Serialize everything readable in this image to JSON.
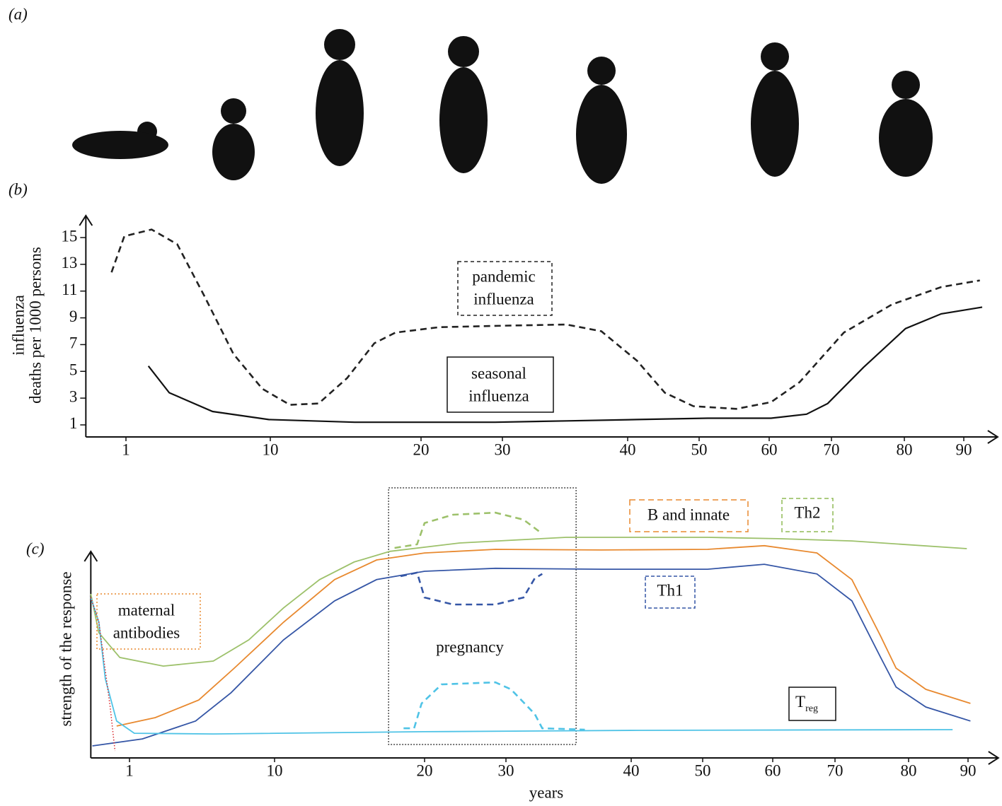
{
  "panel_labels": [
    "(a)",
    "(b)",
    "(c)"
  ],
  "chart_data": [
    {
      "type": "line",
      "ylabel": [
        "influenza",
        "deaths per 1000 persons"
      ],
      "xlim": [
        -1.5,
        95.7
      ],
      "xticks": [
        1,
        10,
        20,
        30,
        40,
        50,
        60,
        70,
        80,
        90
      ],
      "ylim": [
        0.1,
        16.4
      ],
      "yticks": [
        1,
        3,
        5,
        7,
        9,
        11,
        13,
        15
      ],
      "series": [
        {
          "name": [
            "pandemic",
            "influenza"
          ],
          "color": "#222222",
          "dash": true,
          "x": [
            0.1,
            0.9,
            2.6,
            4.2,
            5.9,
            7.7,
            9.5,
            11.3,
            13.2,
            15.1,
            16.9,
            18.3,
            22.2,
            29.1,
            35.1,
            37.9,
            41.3,
            45.2,
            49.2,
            55.3,
            60.3,
            64.9,
            71.7,
            78.3,
            86.2,
            92.7
          ],
          "values": [
            12.4,
            15.1,
            15.6,
            14.5,
            10.6,
            6.3,
            3.7,
            2.5,
            2.6,
            4.5,
            7.1,
            7.9,
            8.3,
            8.4,
            8.5,
            8.0,
            5.8,
            3.4,
            2.4,
            2.2,
            2.7,
            4.2,
            7.9,
            10.0,
            11.3,
            11.8
          ]
        },
        {
          "name": [
            "seasonal",
            "influenza"
          ],
          "color": "#111111",
          "dash": false,
          "x": [
            2.4,
            3.7,
            6.4,
            9.9,
            15.6,
            20.4,
            29.1,
            35.1,
            41.3,
            51.2,
            60.3,
            66.0,
            69.4,
            74.4,
            80.2,
            86.2,
            93.1
          ],
          "values": [
            5.4,
            3.4,
            2.0,
            1.4,
            1.2,
            1.2,
            1.2,
            1.3,
            1.4,
            1.5,
            1.5,
            1.8,
            2.6,
            5.3,
            8.2,
            9.3,
            9.8
          ]
        }
      ]
    },
    {
      "type": "line",
      "ylabel": [
        "strength of the response"
      ],
      "xlabel": "years",
      "xlim": [
        -1.4,
        95.1
      ],
      "xticks": [
        1,
        10,
        20,
        30,
        40,
        50,
        60,
        70,
        80,
        90
      ],
      "ylim": [
        0,
        110
      ],
      "pregnancy_label": "pregnancy",
      "pregnancy_span": [
        17.6,
        35.6
      ],
      "series": [
        {
          "name": [
            "Th2"
          ],
          "color": "#9dc16b",
          "dash": false,
          "x": [
            -1.4,
            -0.9,
            0.4,
            3.1,
            6.2,
            8.4,
            10.6,
            13.0,
            15.3,
            17.7,
            24.3,
            34.8,
            50.7,
            60.8,
            72.3,
            89.8
          ],
          "values": [
            72.5,
            55.3,
            44.4,
            40.6,
            42.8,
            52.2,
            66.3,
            78.8,
            86.6,
            91.3,
            95.0,
            97.5,
            97.5,
            96.9,
            95.9,
            92.5
          ]
        },
        {
          "name": [
            "B and innate"
          ],
          "color": "#e8892f",
          "dash": false,
          "x": [
            0.2,
            2.6,
            5.3,
            7.5,
            10.6,
            14.0,
            16.8,
            20.0,
            28.7,
            37.6,
            50.7,
            58.8,
            67.1,
            72.3,
            76.2,
            78.3,
            82.9,
            90.4
          ],
          "values": [
            14.1,
            17.8,
            25.6,
            39.7,
            60,
            78.8,
            87.5,
            90.6,
            92.2,
            91.9,
            92.2,
            93.8,
            90.6,
            78.8,
            53.8,
            39.7,
            30.3,
            24.1
          ]
        },
        {
          "name": [
            "Th1"
          ],
          "color": "#3556a6",
          "dash": false,
          "x": [
            -1.3,
            1.8,
            5.1,
            7.3,
            10.6,
            14.0,
            16.8,
            20.0,
            28.7,
            37.6,
            50.7,
            58.8,
            67.1,
            72.3,
            76.2,
            78.3,
            82.9,
            90.4
          ],
          "values": [
            5.3,
            8.4,
            16.3,
            28.8,
            52.2,
            69.4,
            78.8,
            82.5,
            83.8,
            83.4,
            83.4,
            85.6,
            81.3,
            69.4,
            44.4,
            31.3,
            22.5,
            16.3
          ]
        },
        {
          "name": [
            "T"
          ],
          "name_sub": "reg",
          "color": "#4fc3e6",
          "dash": false,
          "x": [
            -1.4,
            -0.9,
            -0.5,
            0.2,
            1.3,
            6.2,
            20.0,
            41.0,
            87.4
          ],
          "values": [
            70.9,
            60,
            35,
            16.3,
            10.9,
            10.6,
            11.6,
            12.2,
            12.5
          ]
        },
        {
          "name": [
            "maternal",
            "antibodies"
          ],
          "color": "#d9262b",
          "dash": "dot",
          "x": [
            -1.4,
            -0.9,
            -0.2,
            0.1
          ],
          "values": [
            70.9,
            60,
            22.5,
            3.1
          ]
        },
        {
          "color": "#9dc16b",
          "dash": true,
          "x": [
            18.0,
            19.5,
            20.0,
            23.5,
            28.7,
            31.4,
            32.9
          ],
          "values": [
            92.8,
            94.4,
            103.8,
            107.5,
            108.4,
            105.3,
            99.1
          ]
        },
        {
          "color": "#3556a6",
          "dash": true,
          "x": [
            18.4,
            19.5,
            20.0,
            23.5,
            28.7,
            31.4,
            32.3,
            32.9
          ],
          "values": [
            80.3,
            81.9,
            70.9,
            67.8,
            67.8,
            70.9,
            79.4,
            81.3
          ]
        },
        {
          "color": "#4fc3e6",
          "dash": true,
          "x": [
            18.6,
            19.3,
            19.8,
            22.1,
            28.7,
            30.4,
            32.3,
            32.9,
            36.3
          ],
          "values": [
            13.1,
            13.1,
            24.1,
            32.5,
            33.4,
            30.3,
            19.4,
            13.1,
            12.5
          ]
        }
      ]
    }
  ]
}
